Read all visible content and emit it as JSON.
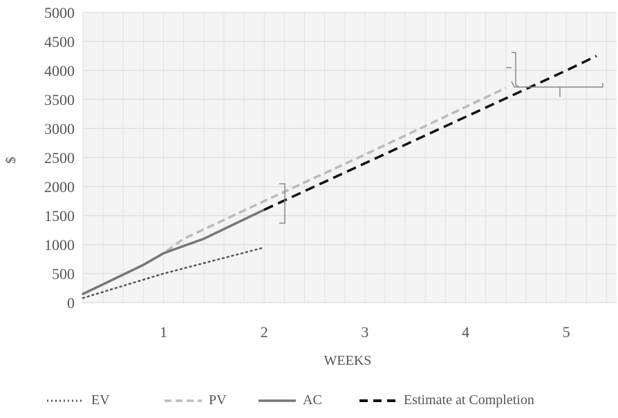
{
  "chart_data": {
    "type": "line",
    "title": "",
    "xlabel": "WEEKS",
    "ylabel": "$",
    "xlim": [
      0.2,
      5.5
    ],
    "ylim": [
      0,
      5000
    ],
    "x_ticks": [
      1,
      2,
      3,
      4,
      5
    ],
    "y_ticks": [
      0,
      500,
      1000,
      1500,
      2000,
      2500,
      3000,
      3500,
      4000,
      4500,
      5000
    ],
    "grid": true,
    "legend_position": "bottom",
    "series": [
      {
        "name": "EV",
        "style": "dotted",
        "color": "#555555",
        "x": [
          0.2,
          1.0,
          2.0
        ],
        "y": [
          80,
          500,
          950
        ]
      },
      {
        "name": "PV",
        "style": "dashed",
        "color": "#bbbbbb",
        "x": [
          0.2,
          0.5,
          0.8,
          1.0,
          1.2,
          2.0,
          3.0,
          4.4
        ],
        "y": [
          150,
          400,
          650,
          850,
          1100,
          1750,
          2550,
          3700
        ]
      },
      {
        "name": "AC",
        "style": "solid",
        "color": "#777777",
        "x": [
          0.2,
          0.5,
          0.8,
          1.0,
          1.4,
          2.0
        ],
        "y": [
          150,
          400,
          650,
          850,
          1100,
          1600
        ]
      },
      {
        "name": "Estimate at Completion",
        "style": "dashed-bold",
        "color": "#111111",
        "x": [
          2.0,
          3.0,
          4.0,
          5.0,
          5.3
        ],
        "y": [
          1600,
          2400,
          3200,
          4000,
          4250
        ]
      }
    ]
  }
}
